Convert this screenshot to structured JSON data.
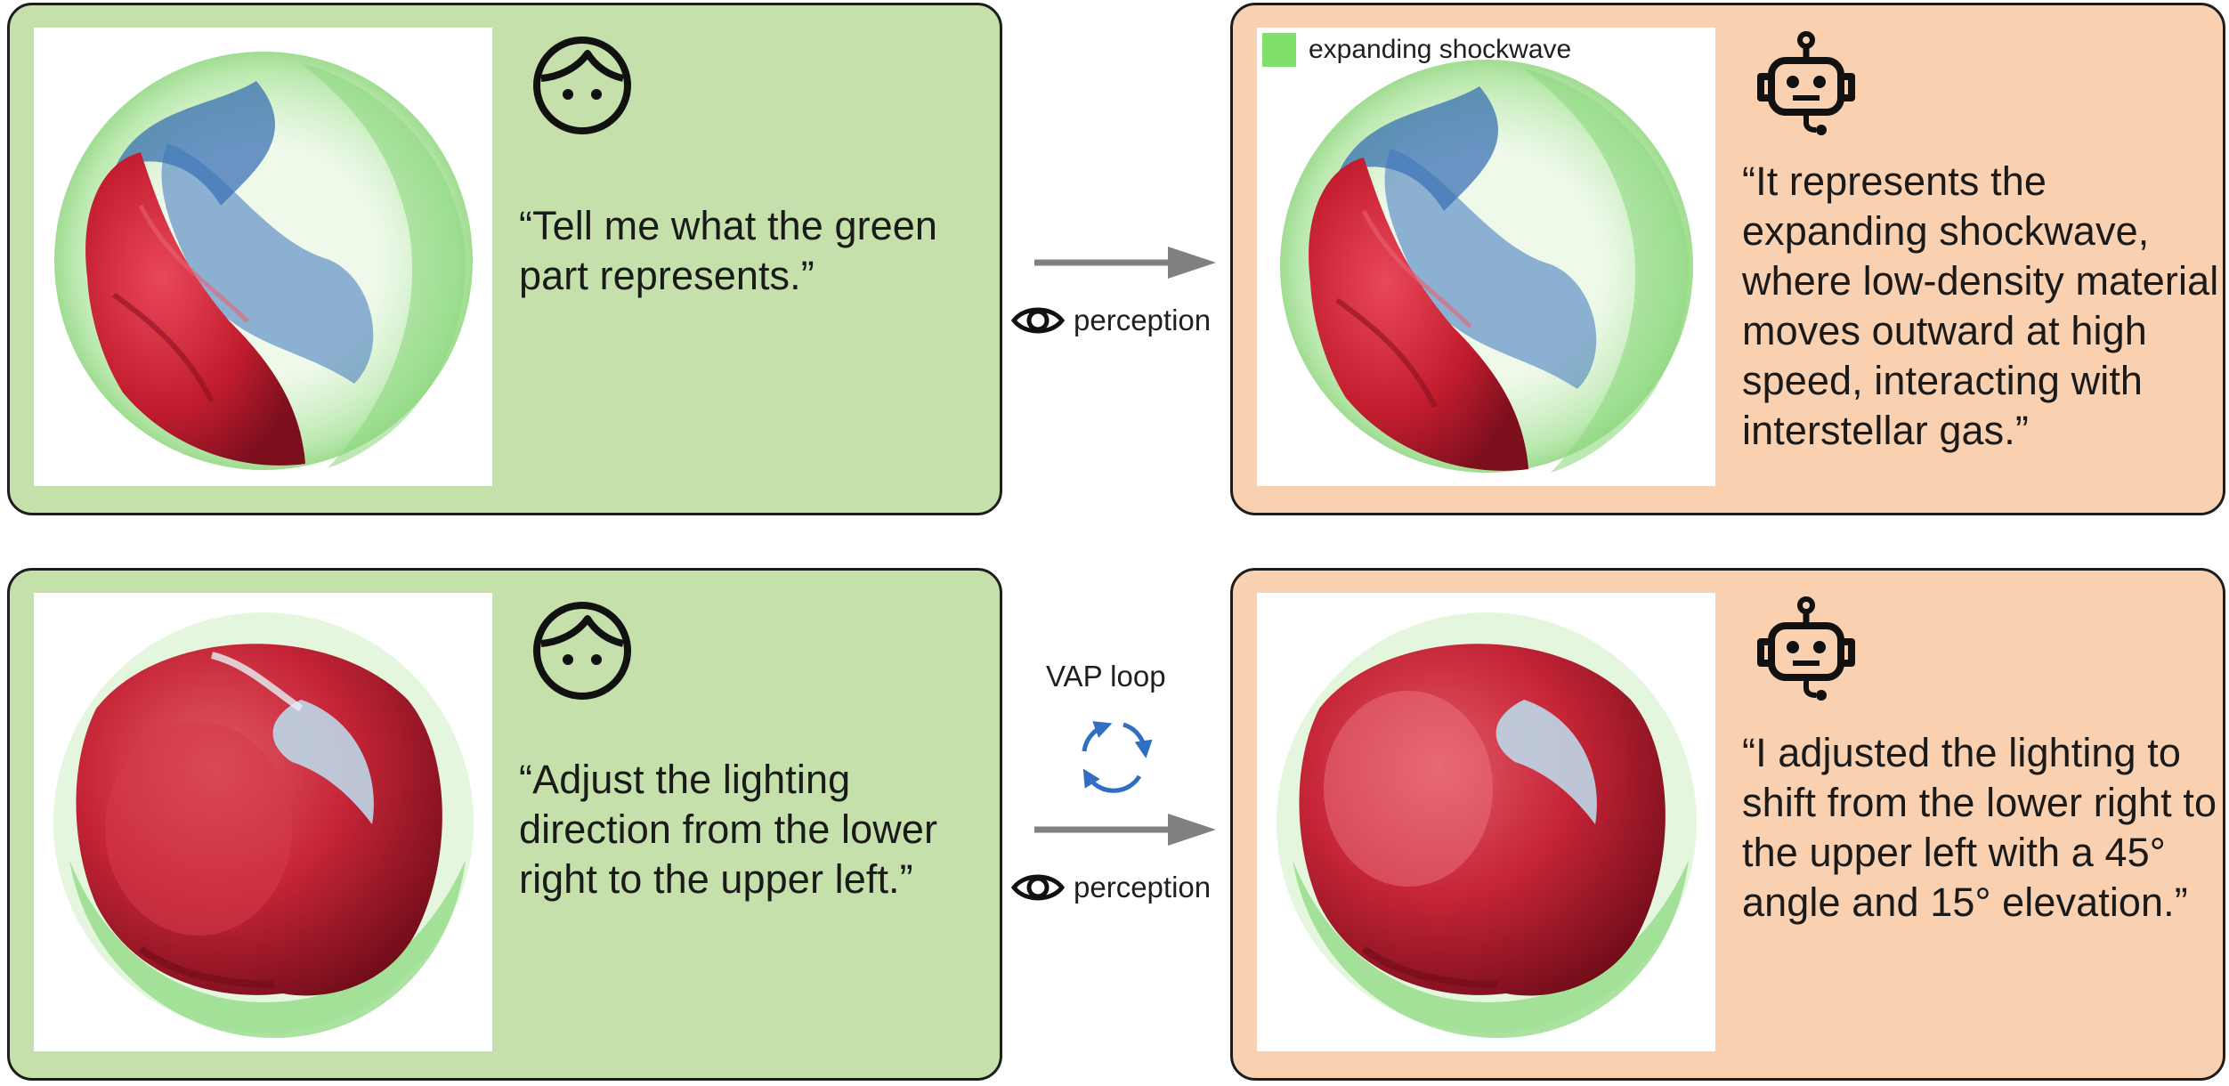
{
  "rows": [
    {
      "user_quote": "“Tell me what the green part represents.”",
      "agent_quote": "“It represents the expanding shockwave, where low-density material moves outward at high speed, interacting with interstellar gas.”",
      "agent_legend": "expanding shockwave",
      "perception_label": "perception"
    },
    {
      "user_quote": "“Adjust the lighting direction from the lower right to the upper left.”",
      "agent_quote": "“I adjusted the lighting to shift from the lower right to the upper left with a 45° angle and 15° elevation.”",
      "loop_label": "VAP loop",
      "perception_label": "perception"
    }
  ],
  "colors": {
    "user_panel": "#c5e0ab",
    "agent_panel": "#f9d1b1",
    "legend_swatch": "#7fe06b",
    "arrow": "#808080",
    "loop_arrows": "#2f6ec0"
  },
  "icons": [
    "user-face-icon",
    "robot-icon",
    "eye-icon",
    "cycle-arrows-icon"
  ]
}
